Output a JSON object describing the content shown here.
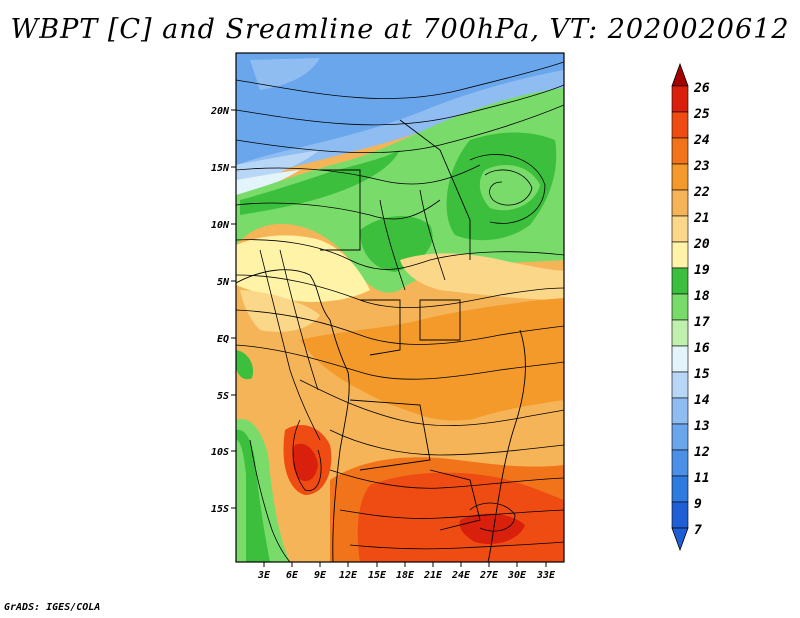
{
  "title": "WBPT [C] and Sreamline at 700hPa, VT: 2020020612",
  "footer": "GrADS: IGES/COLA",
  "map": {
    "lat_labels": [
      "20N",
      "15N",
      "10N",
      "5N",
      "EQ",
      "5S",
      "10S",
      "15S"
    ],
    "lon_labels": [
      "3E",
      "6E",
      "9E",
      "12E",
      "15E",
      "18E",
      "21E",
      "24E",
      "27E",
      "30E",
      "33E"
    ]
  },
  "colorbar": {
    "levels": [
      "7",
      "9",
      "11",
      "12",
      "13",
      "14",
      "15",
      "16",
      "17",
      "18",
      "19",
      "20",
      "21",
      "22",
      "23",
      "24",
      "25",
      "26"
    ],
    "colors": [
      "#1f5fd6",
      "#2e7be0",
      "#4a90e6",
      "#6aa6ec",
      "#8fbdf2",
      "#b8d7f7",
      "#e4f4fb",
      "#bff0ae",
      "#79dc6a",
      "#3cbf3c",
      "#fff3a8",
      "#fbd78a",
      "#f6b458",
      "#f49a2a",
      "#f2741a",
      "#ee4c12",
      "#d8200c",
      "#b00000"
    ],
    "low_arrow_color": "#1f5fd6",
    "high_arrow_color": "#a40000"
  }
}
